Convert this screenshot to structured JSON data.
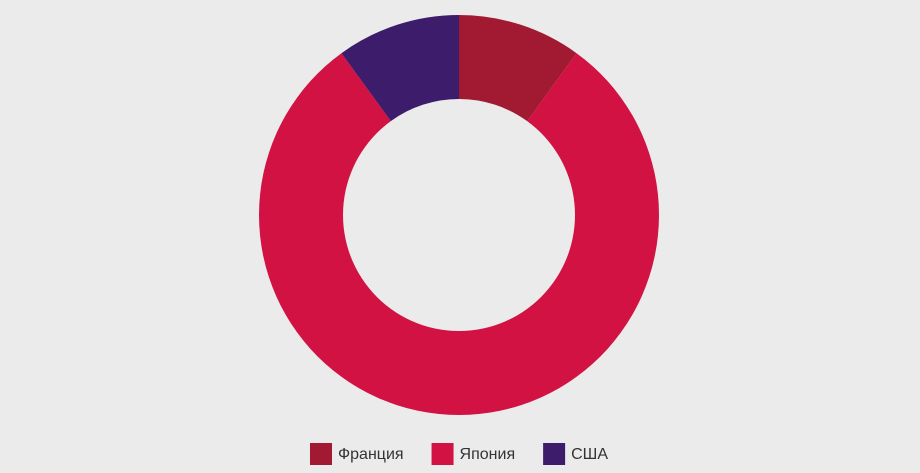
{
  "chart_data": {
    "type": "donut",
    "categories": [
      "Франция",
      "Япония",
      "США"
    ],
    "values": [
      10,
      80,
      10
    ],
    "colors": [
      "#a21a32",
      "#d11242",
      "#3d1c6b"
    ],
    "legend": "bottom"
  }
}
